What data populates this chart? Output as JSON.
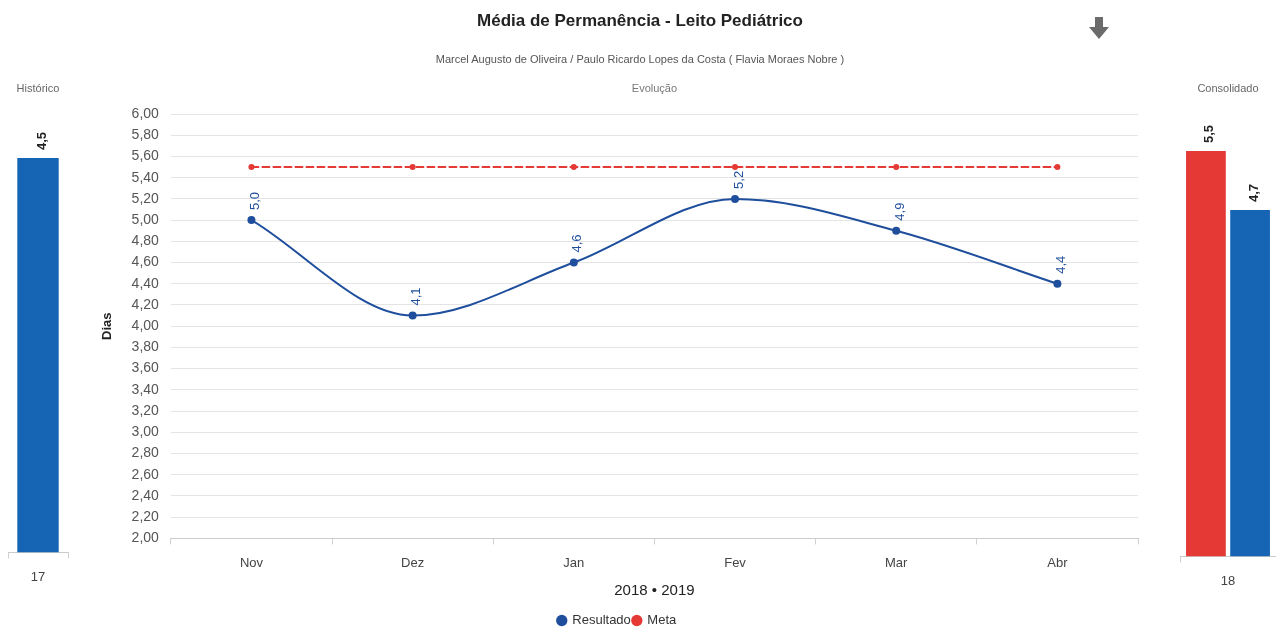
{
  "chart_data": [
    {
      "type": "bar",
      "title": "Histórico",
      "categories": [
        "17"
      ],
      "values": [
        4.5
      ],
      "color": "#1565b4",
      "value_labels": [
        "4,5"
      ],
      "tick_labels": "x"
    },
    {
      "type": "line",
      "title": "Média de Permanência - Leito Pediátrico",
      "subtitle": "Marcel Augusto de Oliveira / Paulo Ricardo Lopes da Costa ( Flavia Moraes Nobre )",
      "annotations": [
        "Evolução"
      ],
      "xlabel": "2018 • 2019",
      "ylabel": "Dias",
      "categories": [
        "Nov",
        "Dez",
        "Jan",
        "Fev",
        "Mar",
        "Abr"
      ],
      "series": [
        {
          "name": "Resultado",
          "color": "#1f4e9c",
          "values": [
            5.0,
            4.1,
            4.6,
            5.2,
            4.9,
            4.4
          ],
          "value_labels": [
            "5,0",
            "4,1",
            "4,6",
            "5,2",
            "4,9",
            "4,4"
          ]
        },
        {
          "name": "Meta",
          "color": "#e53935",
          "values": [
            5.5,
            5.5,
            5.5,
            5.5,
            5.5,
            5.5
          ],
          "line_style": "dashed"
        }
      ],
      "ylim": [
        2,
        6
      ],
      "yticks": [
        {
          "value": 2,
          "label": "2,00"
        },
        {
          "value": 2.2,
          "label": "2,20"
        },
        {
          "value": 2.4,
          "label": "2,40"
        },
        {
          "value": 2.6,
          "label": "2,60"
        },
        {
          "value": 2.8,
          "label": "2,80"
        },
        {
          "value": 3,
          "label": "3,00"
        },
        {
          "value": 3.2,
          "label": "3,20"
        },
        {
          "value": 3.4,
          "label": "3,40"
        },
        {
          "value": 3.6,
          "label": "3,60"
        },
        {
          "value": 3.8,
          "label": "3,80"
        },
        {
          "value": 4,
          "label": "4,00"
        },
        {
          "value": 4.2,
          "label": "4,20"
        },
        {
          "value": 4.4,
          "label": "4,40"
        },
        {
          "value": 4.6,
          "label": "4,60"
        },
        {
          "value": 4.8,
          "label": "4,80"
        },
        {
          "value": 5,
          "label": "5,00"
        },
        {
          "value": 5.2,
          "label": "5,20"
        },
        {
          "value": 5.4,
          "label": "5,40"
        },
        {
          "value": 5.6,
          "label": "5,60"
        },
        {
          "value": 5.8,
          "label": "5,80"
        },
        {
          "value": 6,
          "label": "6,00"
        }
      ],
      "grid": "y",
      "legend": "bottom",
      "marker": "circle"
    },
    {
      "type": "bar",
      "title": "Consolidado",
      "categories": [
        "18"
      ],
      "series": [
        {
          "color": "#e53935",
          "values": [
            5.5
          ],
          "value_labels": [
            "5,5"
          ]
        },
        {
          "color": "#1565b4",
          "values": [
            4.7
          ],
          "value_labels": [
            "4,7"
          ]
        }
      ],
      "tick_labels": "x"
    }
  ]
}
